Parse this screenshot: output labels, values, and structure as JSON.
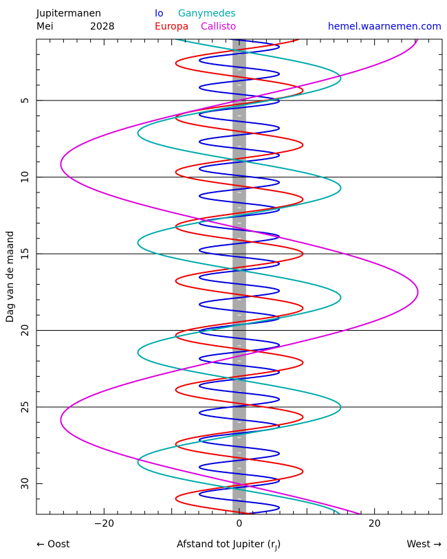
{
  "header": {
    "title": "Jupitermanen",
    "month": "Mei",
    "year": "2028",
    "website": "hemel.waarnemen.com",
    "legend": [
      {
        "name": "Io",
        "color": "#0000dd"
      },
      {
        "name": "Ganymedes",
        "color": "#00aaaa"
      },
      {
        "name": "Europa",
        "color": "#ee0000"
      },
      {
        "name": "Callisto",
        "color": "#dd00dd"
      }
    ]
  },
  "footer": {
    "left": "← Oost",
    "right": "West →",
    "xlabel": "Afstand tot Jupiter (r",
    "xlabel_sub": "J",
    "xlabel_close": ")"
  },
  "chart_data": {
    "type": "line",
    "orientation": "vertical-time",
    "ylabel": "Dag van de maand",
    "xlim": [
      -30,
      30
    ],
    "ylim": [
      1.0,
      32.0
    ],
    "y_inverted": true,
    "x_ticks": [
      -20,
      0,
      20
    ],
    "y_ticks": [
      5,
      10,
      15,
      20,
      25,
      30
    ],
    "gridlines_y": [
      5,
      10,
      15,
      20,
      25
    ],
    "jupiter_band_halfwidth": 1,
    "series": [
      {
        "name": "Io",
        "color": "#0000dd",
        "amplitude": 5.9,
        "period_days": 1.769,
        "phase_day": 1.5
      },
      {
        "name": "Europa",
        "color": "#ee0000",
        "amplitude": 9.4,
        "period_days": 3.551,
        "phase_day": 4.35
      },
      {
        "name": "Ganymedes",
        "color": "#00aaaa",
        "amplitude": 15.0,
        "period_days": 7.155,
        "phase_day": 3.55
      },
      {
        "name": "Callisto",
        "color": "#dd00dd",
        "amplitude": 26.4,
        "period_days": 16.689,
        "phase_day": 17.5
      }
    ]
  }
}
